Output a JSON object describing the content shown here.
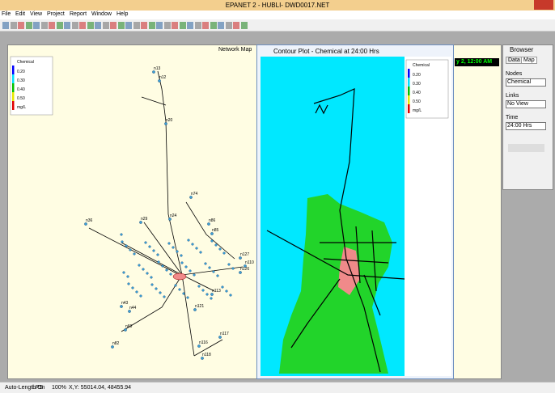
{
  "window": {
    "title": "EPANET 2 - HUBLI- DWD0017.NET"
  },
  "menu": [
    "File",
    "Edit",
    "View",
    "Project",
    "Report",
    "Window",
    "Help"
  ],
  "network_map": {
    "title": "Network Map",
    "legend": {
      "title": "Chemical",
      "levels": [
        "0.20",
        "0.30",
        "0.40",
        "0.50"
      ],
      "unit": "mg/L"
    },
    "node_labels": [
      "n13",
      "n12",
      "n20",
      "n24",
      "n29",
      "n36",
      "n74",
      "n86",
      "n85",
      "n110",
      "n127",
      "n126",
      "n113",
      "n121",
      "n43",
      "n44",
      "n60",
      "n82",
      "n117",
      "n118",
      "n116"
    ]
  },
  "contour_plot": {
    "title": "Contour Plot - Chemical at 24:00 Hrs",
    "legend": {
      "title": "Chemical",
      "levels": [
        "0.20",
        "0.30",
        "0.40",
        "0.50"
      ],
      "unit": "mg/L"
    }
  },
  "time_display": "y 2, 12:00 AM",
  "browser": {
    "title": "Browser",
    "tabs": [
      "Data",
      "Map"
    ],
    "nodes_label": "Nodes",
    "nodes_value": "Chemical",
    "links_label": "Links",
    "links_value": "No View",
    "time_label": "Time",
    "time_value": "24:00 Hrs"
  },
  "status_bar": [
    "Auto-Length On",
    "LPS",
    "100%",
    "X,Y: 55014.04, 48455.94"
  ]
}
